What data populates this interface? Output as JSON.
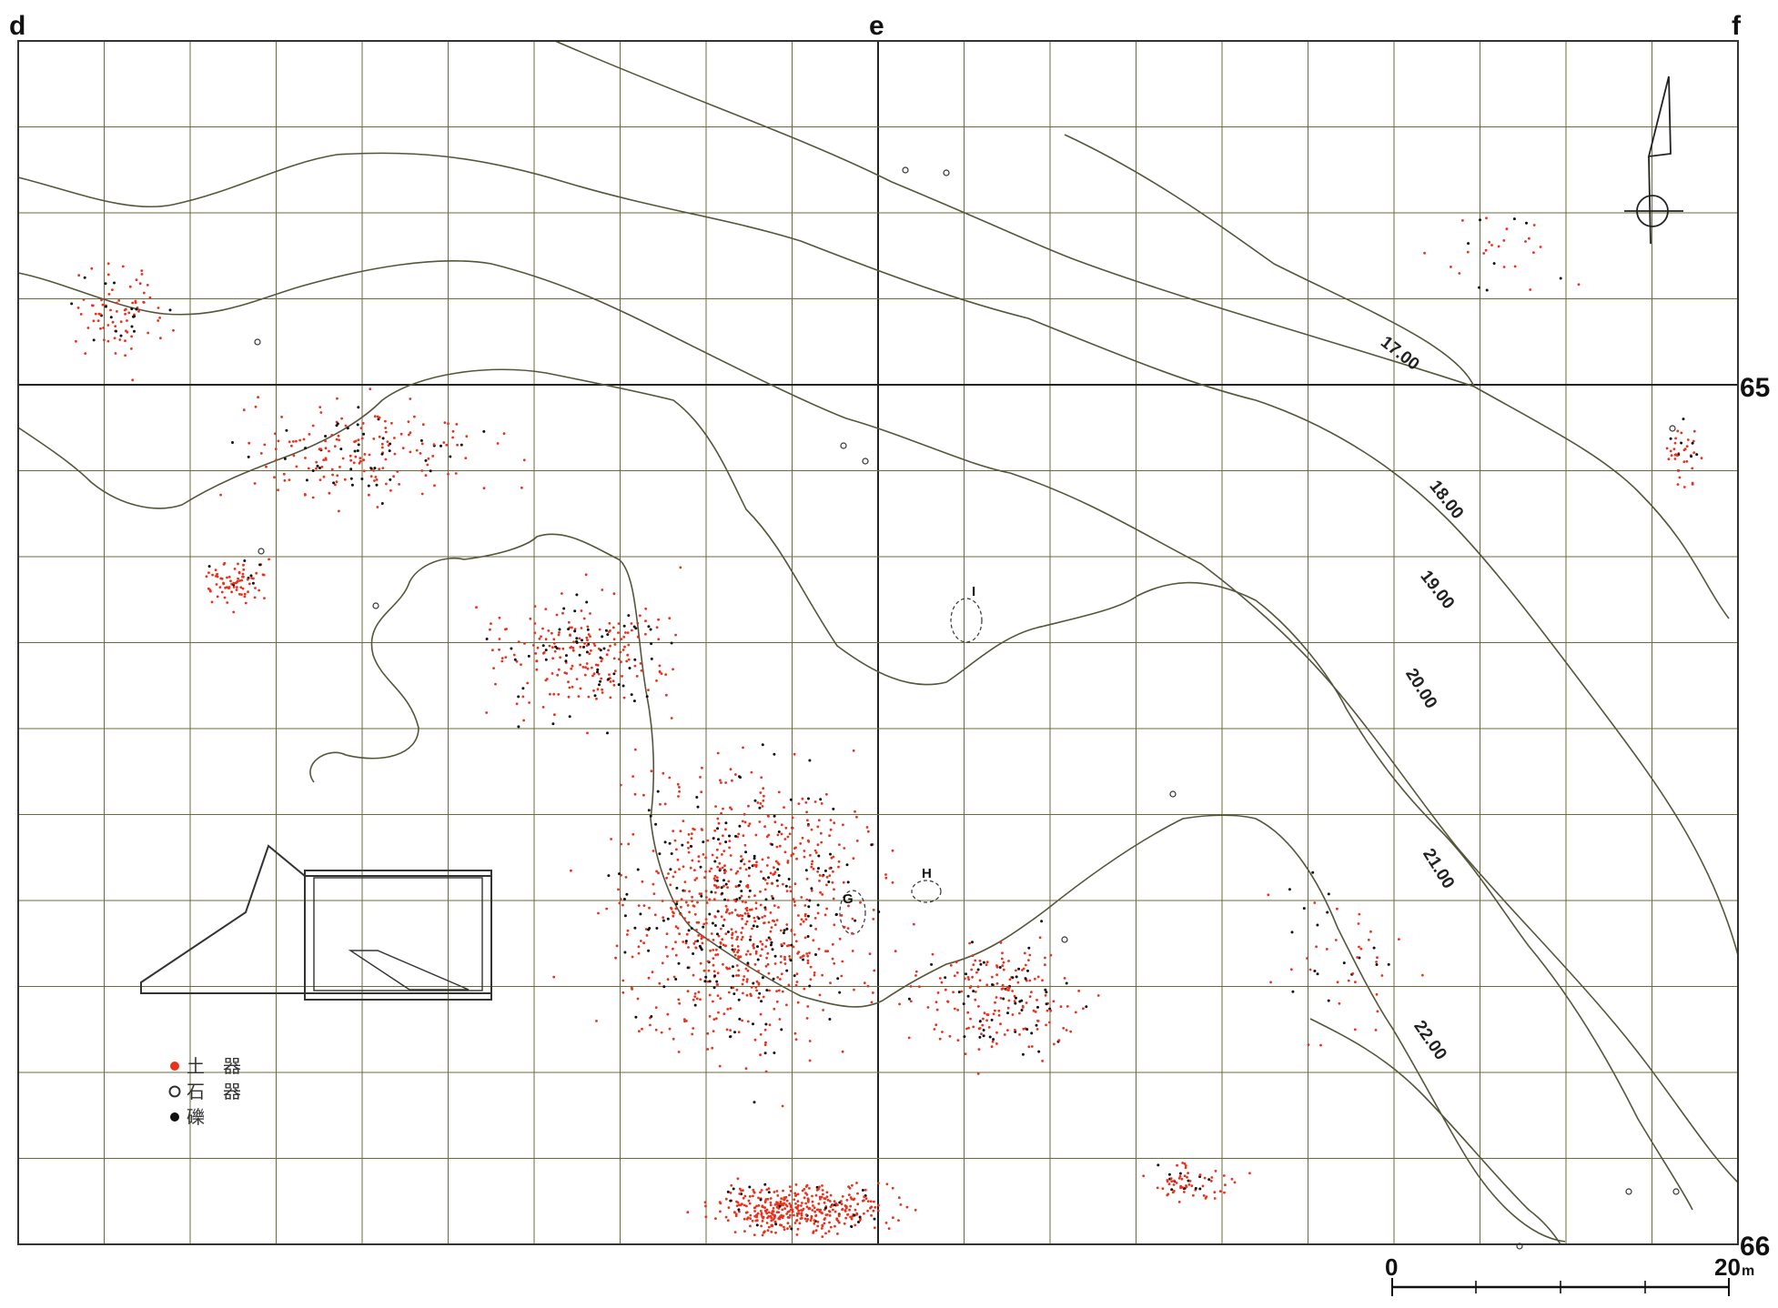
{
  "map": {
    "column_labels": [
      "d",
      "e",
      "f"
    ],
    "row_labels": [
      "65",
      "66"
    ],
    "contour_labels": [
      "17.00",
      "18.00",
      "19.00",
      "20.00",
      "21.00",
      "22.00"
    ],
    "feature_labels": [
      "I",
      "H",
      "G"
    ],
    "legend": {
      "items": [
        {
          "symbol": "red-dot-icon",
          "label": "土　器",
          "color": "#e8321e"
        },
        {
          "symbol": "open-circle-icon",
          "label": "石　器",
          "color": "#333333"
        },
        {
          "symbol": "black-dot-icon",
          "label": "礫",
          "color": "#111111"
        }
      ]
    },
    "scale_bar": {
      "start_label": "0",
      "end_label": "20",
      "unit": "m"
    },
    "north_arrow": "north-arrow-icon",
    "colors": {
      "grid": "#6b6a3a",
      "contour": "#55553a",
      "pottery": "#e8321e",
      "gravel": "#111111"
    }
  }
}
